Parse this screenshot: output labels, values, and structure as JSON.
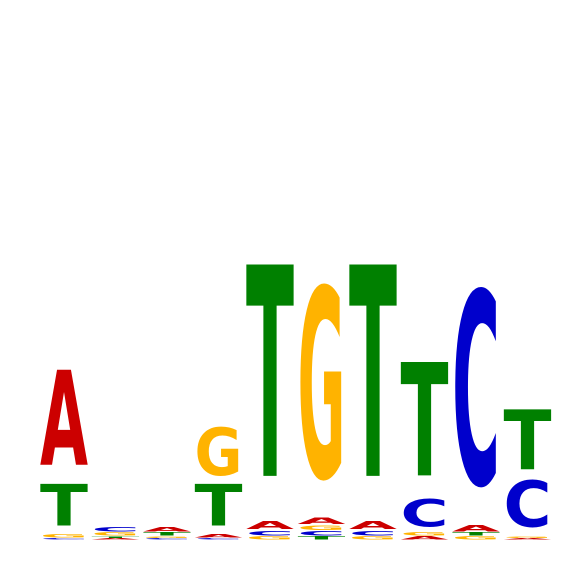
{
  "logo": {
    "alphabet": [
      "A",
      "C",
      "G",
      "T"
    ],
    "colors": {
      "A": "#cc0000",
      "C": "#0000cc",
      "G": "#ffb300",
      "T": "#008000"
    },
    "max_bits": 2.0,
    "positions": [
      {
        "A": 0.62,
        "C": 0.01,
        "G": 0.02,
        "T": 0.27
      },
      {
        "A": 0.01,
        "C": 0.03,
        "G": 0.02,
        "T": 0.01
      },
      {
        "A": 0.03,
        "C": 0.01,
        "G": 0.01,
        "T": 0.02
      },
      {
        "A": 0.02,
        "C": 0.01,
        "G": 0.31,
        "T": 0.27
      },
      {
        "A": 0.05,
        "C": 0.03,
        "G": 0.02,
        "T": 1.38
      },
      {
        "A": 0.04,
        "C": 0.03,
        "G": 0.03,
        "T": 0.02,
        "Gtop": 1.24
      },
      {
        "A": 0.05,
        "C": 0.03,
        "G": 0.02,
        "T": 1.38
      },
      {
        "A": 0.02,
        "C": 0.18,
        "G": 0.02,
        "T": 0.74
      },
      {
        "A": 0.04,
        "C": 1.26,
        "G": 0.02,
        "T": 0.02
      },
      {
        "A": 0.01,
        "C": 0.3,
        "G": 0.01,
        "T": 0.39
      }
    ]
  }
}
